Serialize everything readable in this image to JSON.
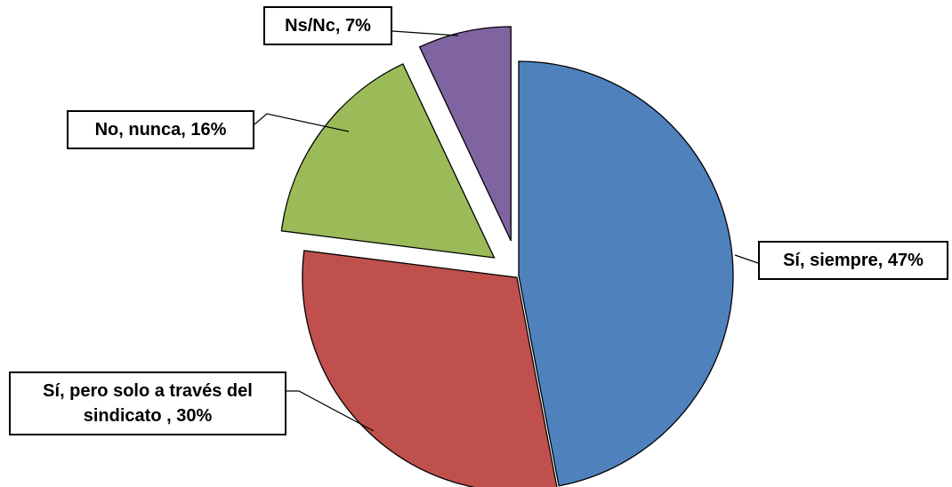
{
  "chart_data": {
    "type": "pie",
    "values": [
      47,
      30,
      16,
      7
    ],
    "value_labels": [
      "Sí, siempre, 47%",
      "Sí, pero solo a través del sindicato , 30%",
      "No, nunca, 16%",
      "Ns/Nc, 7%"
    ],
    "colors": [
      "#4f81bd",
      "#c0504d",
      "#9bbb59",
      "#8064a2"
    ]
  }
}
